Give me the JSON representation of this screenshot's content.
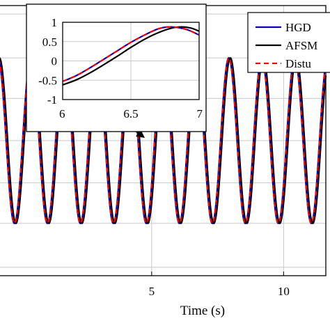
{
  "chart_data": [
    {
      "type": "line",
      "title": "",
      "xlabel": "Time (s)",
      "ylabel": "",
      "xlim": [
        -0.8,
        11.6
      ],
      "ylim": [
        -1.6,
        1.6
      ],
      "x_ticks": [
        5,
        10
      ],
      "x_tick_labels": [
        "5",
        "10"
      ],
      "grid": true,
      "frequency_hz": 0.8,
      "series": [
        {
          "name": "HGDO",
          "legend_text": "HGD",
          "color": "#0000cc",
          "style": "solid",
          "amplitude": 0.98,
          "phase_shift_s": 0.0
        },
        {
          "name": "AFSMO",
          "legend_text": "AFSM",
          "color": "#000000",
          "style": "solid",
          "amplitude": 0.98,
          "phase_shift_s": 0.06
        },
        {
          "name": "Disturbance",
          "legend_text": "Distu",
          "color": "#ff0000",
          "style": "dashed",
          "amplitude": 0.98,
          "phase_shift_s": 0.0
        }
      ],
      "legend": {
        "position": "top-right"
      }
    },
    {
      "type": "line",
      "role": "inset-zoom",
      "xlim": [
        6,
        7
      ],
      "ylim": [
        -1,
        1
      ],
      "x_ticks": [
        6,
        6.5,
        7
      ],
      "x_tick_labels": [
        "6",
        "6.5",
        "7"
      ],
      "y_ticks": [
        1,
        0.5,
        0,
        -0.5,
        -1
      ],
      "y_tick_labels": [
        "1",
        "0.5",
        "0",
        "-0.5",
        "-1"
      ],
      "grid": true,
      "series": [
        {
          "name": "HGDO",
          "color": "#0000cc",
          "style": "solid",
          "x": [
            6.0,
            6.1,
            6.2,
            6.3,
            6.4,
            6.5,
            6.6,
            6.7,
            6.78,
            6.85,
            6.92,
            7.0
          ],
          "y": [
            -0.53,
            -0.38,
            -0.18,
            0.04,
            0.26,
            0.48,
            0.67,
            0.83,
            0.88,
            0.86,
            0.8,
            0.67
          ]
        },
        {
          "name": "AFSMO",
          "color": "#000000",
          "style": "solid",
          "x": [
            6.0,
            6.1,
            6.2,
            6.3,
            6.4,
            6.5,
            6.6,
            6.7,
            6.8,
            6.87,
            6.94,
            7.0
          ],
          "y": [
            -0.62,
            -0.49,
            -0.31,
            -0.1,
            0.12,
            0.35,
            0.56,
            0.73,
            0.85,
            0.88,
            0.85,
            0.77
          ]
        },
        {
          "name": "Disturbance",
          "color": "#ff0000",
          "style": "dashed",
          "x": [
            6.0,
            6.1,
            6.2,
            6.3,
            6.4,
            6.5,
            6.6,
            6.7,
            6.78,
            6.85,
            6.92,
            7.0
          ],
          "y": [
            -0.53,
            -0.38,
            -0.18,
            0.04,
            0.26,
            0.48,
            0.67,
            0.83,
            0.88,
            0.86,
            0.8,
            0.67
          ]
        }
      ]
    }
  ]
}
